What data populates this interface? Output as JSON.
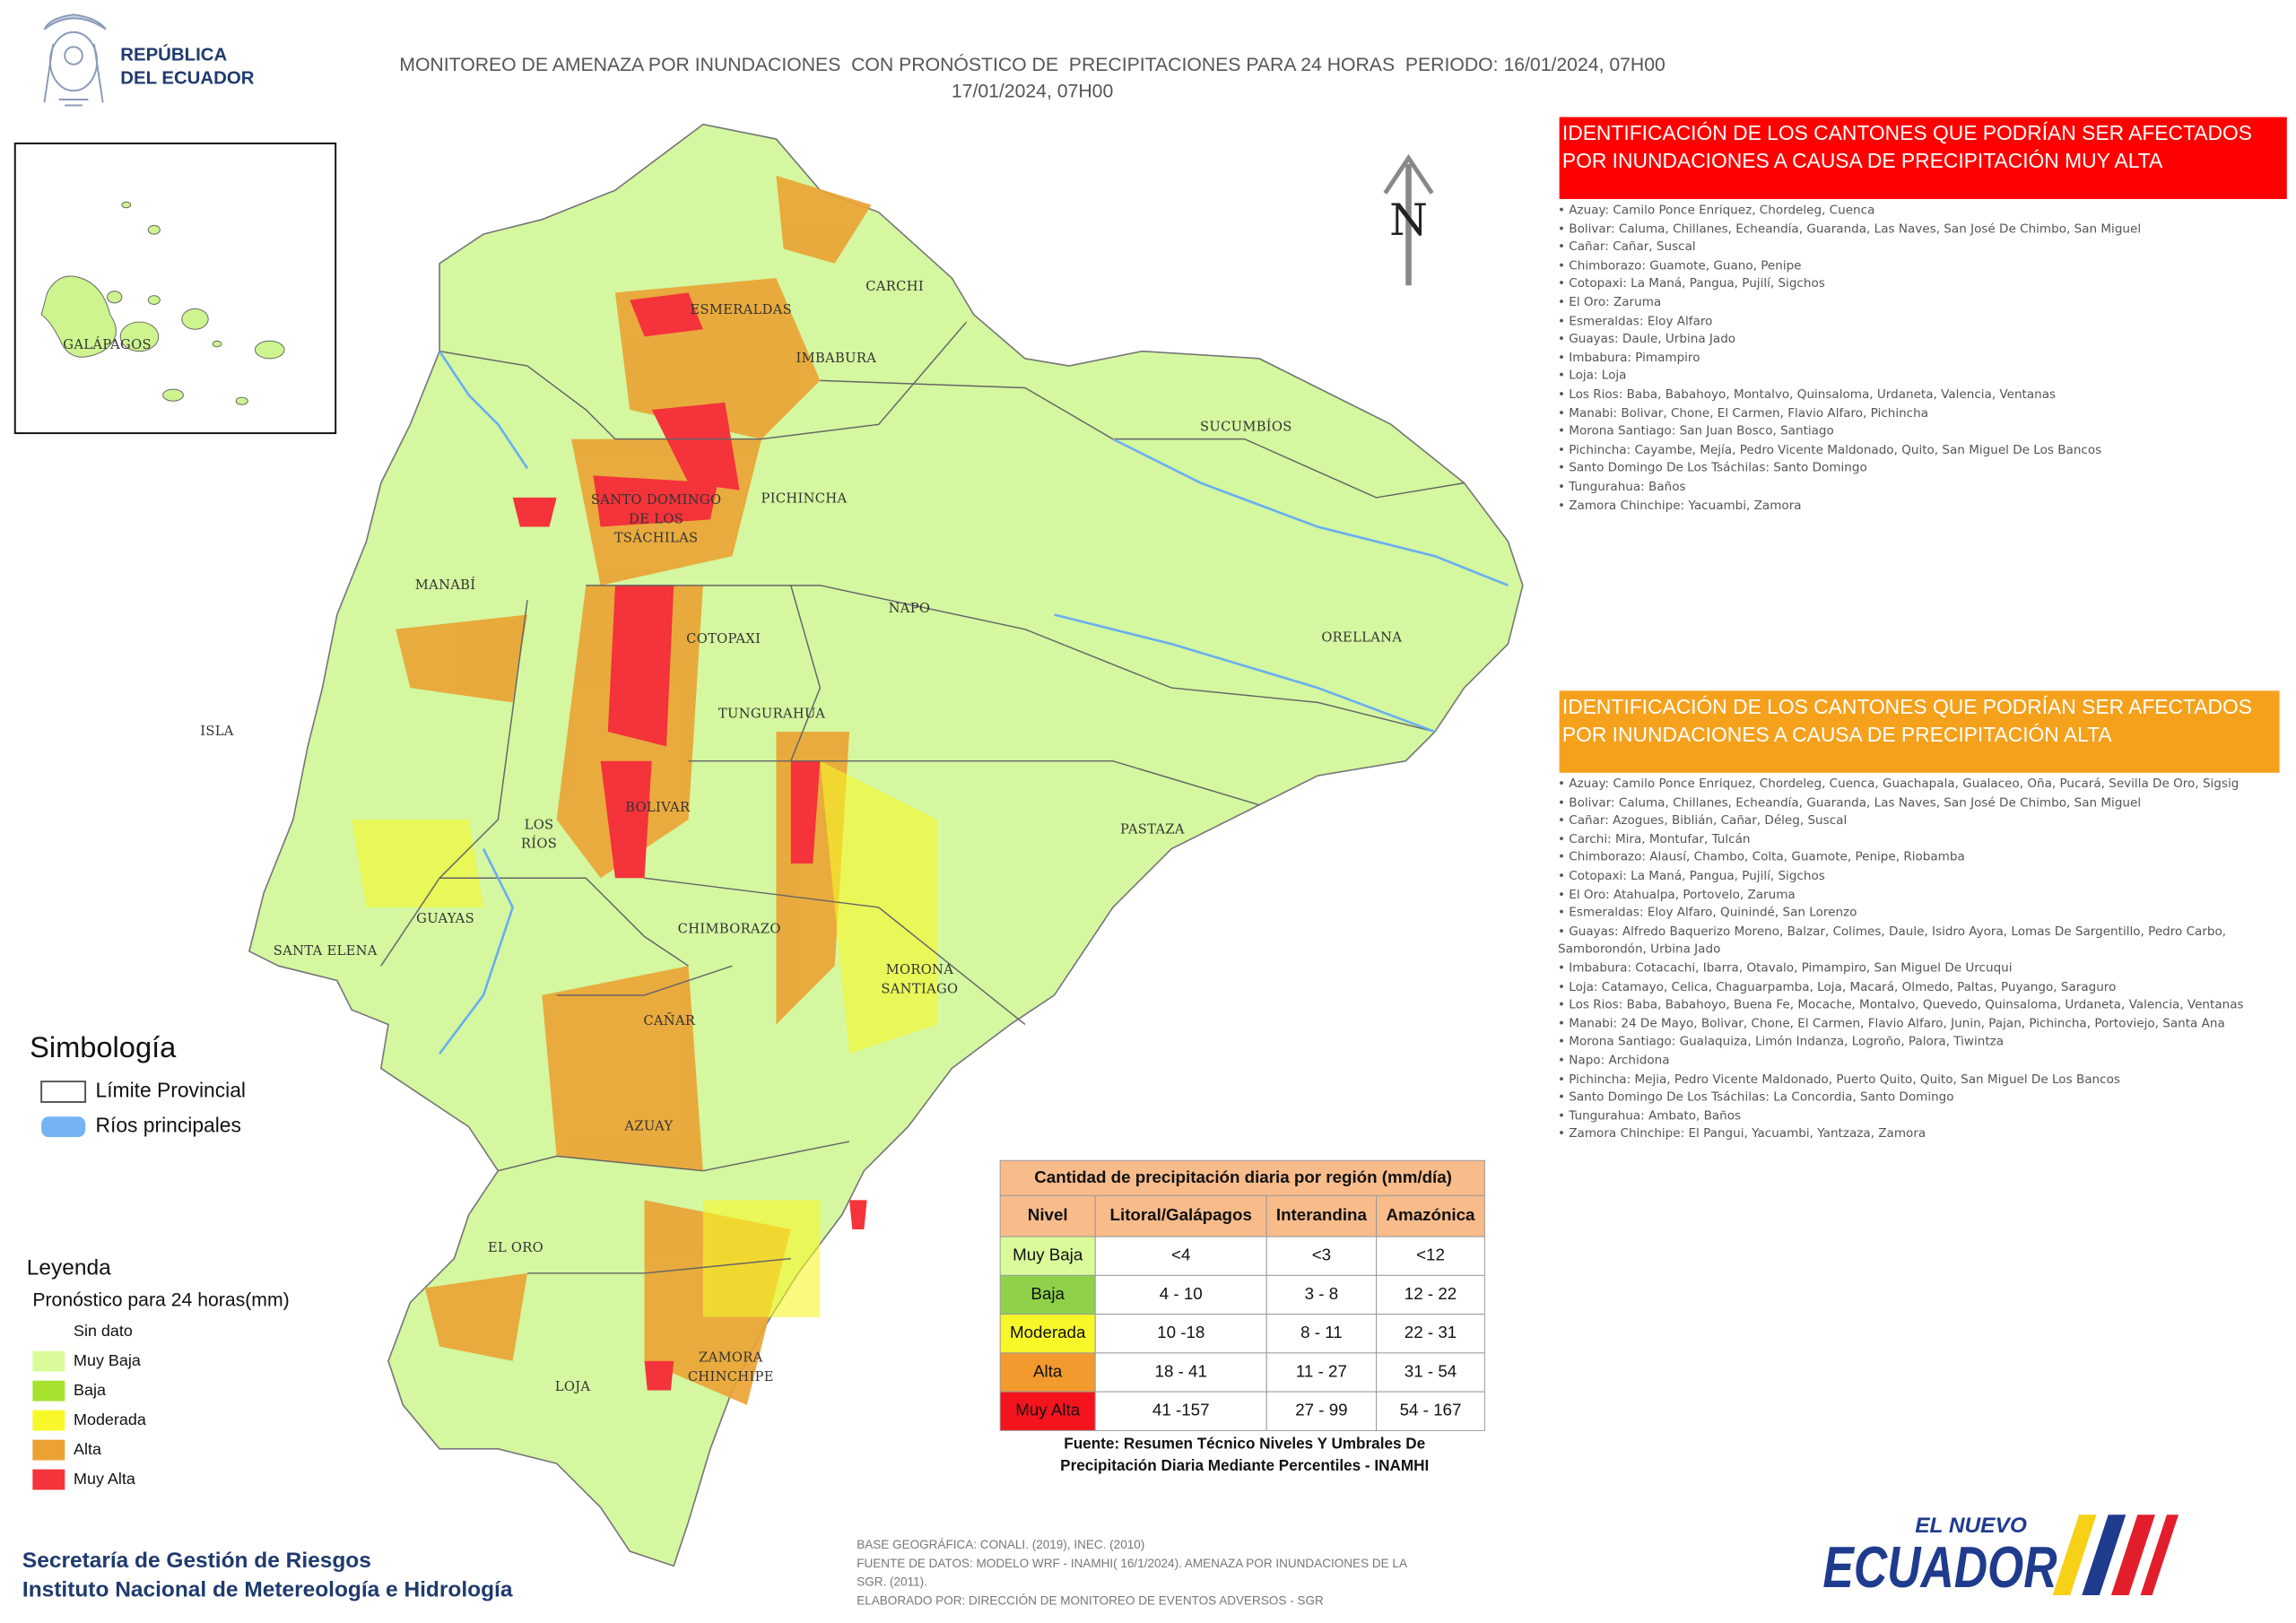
{
  "header": {
    "institution": [
      "REPÚBLICA",
      "DEL ECUADOR"
    ],
    "title": [
      "MONITOREO DE AMENAZA POR INUNDACIONES  CON PRONÓSTICO DE  PRECIPITACIONES PARA 24 HORAS  PERIODO: 16/01/2024, 07H00",
      "17/01/2024, 07H00"
    ]
  },
  "map": {
    "north": "N",
    "inset_label": "GALÁPAGOS",
    "provinces": [
      [
        "ESMERALDAS"
      ],
      [
        "CARCHI"
      ],
      [
        "IMBABURA"
      ],
      [
        "SUCUMBÍOS"
      ],
      [
        "PICHINCHA"
      ],
      [
        "SANTO DOMINGO",
        "DE LOS",
        "TSÁCHILAS"
      ],
      [
        "MANABÍ"
      ],
      [
        "NAPO"
      ],
      [
        "ORELLANA"
      ],
      [
        "COTOPAXI"
      ],
      [
        "TUNGURAHUA"
      ],
      [
        "ISLA"
      ],
      [
        "BOLIVAR"
      ],
      [
        "LOS",
        "RÍOS"
      ],
      [
        "PASTAZA"
      ],
      [
        "GUAYAS"
      ],
      [
        "CHIMBORAZO"
      ],
      [
        "SANTA ELENA"
      ],
      [
        "MORONA",
        "SANTIAGO"
      ],
      [
        "CAÑAR"
      ],
      [
        "AZUAY"
      ],
      [
        "EL ORO"
      ],
      [
        "ZAMORA",
        "CHINCHIPE"
      ],
      [
        "LOJA"
      ]
    ]
  },
  "symbology": {
    "title": "Simbología",
    "items": [
      "Límite Provincial",
      "Ríos principales"
    ]
  },
  "legend": {
    "title": "Leyenda",
    "subtitle": "Pronóstico para 24 horas(mm)",
    "items": [
      {
        "label": "Sin dato",
        "color": "#ffffff"
      },
      {
        "label": "Muy Baja",
        "color": "#d9fb9a"
      },
      {
        "label": "Baja",
        "color": "#a6e22e"
      },
      {
        "label": "Moderada",
        "color": "#f7f72a"
      },
      {
        "label": "Alta",
        "color": "#eba232"
      },
      {
        "label": "Muy Alta",
        "color": "#f4333a"
      }
    ]
  },
  "panels": [
    {
      "title": [
        "IDENTIFICACIÓN DE LOS CANTONES QUE PODRÍAN SER AFECTADOS",
        "POR INUNDACIONES  A CAUSA DE PRECIPITACIÓN MUY ALTA"
      ],
      "color": "#ff0000",
      "items": [
        "• Azuay: Camilo Ponce Enriquez, Chordeleg, Cuenca",
        "• Bolivar: Caluma, Chillanes, Echeandía, Guaranda, Las Naves, San José De Chimbo, San Miguel",
        "• Cañar: Cañar, Suscal",
        "• Chimborazo: Guamote, Guano, Penipe",
        "• Cotopaxi: La Maná, Pangua, Pujilí, Sigchos",
        "• El Oro: Zaruma",
        "• Esmeraldas: Eloy Alfaro",
        "• Guayas: Daule, Urbina Jado",
        "• Imbabura: Pimampiro",
        "• Loja: Loja",
        "• Los Rios: Baba, Babahoyo, Montalvo, Quinsaloma, Urdaneta, Valencia, Ventanas",
        "• Manabi: Bolivar, Chone, El Carmen, Flavio Alfaro, Pichincha",
        "• Morona Santiago: San Juan Bosco, Santiago",
        "• Pichincha: Cayambe, Mejía, Pedro Vicente Maldonado, Quito, San Miguel De Los Bancos",
        "• Santo Domingo De Los Tsáchilas: Santo Domingo",
        "• Tungurahua: Baños",
        "• Zamora Chinchipe: Yacuambi, Zamora"
      ]
    },
    {
      "title": [
        "IDENTIFICACIÓN DE LOS CANTONES QUE  PODRÍAN SER AFECTADOS",
        "POR INUNDACIONES  A CAUSA DE PRECIPITACIÓN  ALTA"
      ],
      "color": "#f5a11c",
      "items": [
        "• Azuay: Camilo Ponce Enriquez, Chordeleg, Cuenca, Guachapala, Gualaceo, Oña, Pucará, Sevilla De Oro, Sigsig",
        "• Bolivar: Caluma, Chillanes, Echeandía, Guaranda, Las Naves, San José De Chimbo, San Miguel",
        "• Cañar: Azogues, Biblián, Cañar, Déleg, Suscal",
        "• Carchi: Mira, Montufar, Tulcán",
        "• Chimborazo: Alausí, Chambo, Colta, Guamote, Penipe, Riobamba",
        "• Cotopaxi: La Maná, Pangua, Pujilí, Sigchos",
        "• El Oro: Atahualpa, Portovelo, Zaruma",
        "• Esmeraldas: Eloy Alfaro, Quinindé, San Lorenzo",
        "• Guayas: Alfredo Baquerizo Moreno, Balzar, Colimes, Daule, Isidro Ayora, Lomas De Sargentillo, Pedro Carbo, Samborondón, Urbina Jado",
        "• Imbabura: Cotacachi, Ibarra, Otavalo, Pimampiro, San Miguel De Urcuqui",
        "• Loja: Catamayo, Celica, Chaguarpamba, Loja, Macará, Olmedo, Paltas, Puyango, Saraguro",
        "• Los Rios: Baba, Babahoyo, Buena Fe, Mocache, Montalvo, Quevedo, Quinsaloma, Urdaneta, Valencia, Ventanas",
        "• Manabi: 24 De Mayo, Bolivar, Chone, El Carmen, Flavio Alfaro, Junin, Pajan, Pichincha, Portoviejo, Santa Ana",
        "• Morona Santiago: Gualaquiza, Limón Indanza, Logroño, Palora, Tiwintza",
        "• Napo: Archidona",
        "• Pichincha: Mejia, Pedro Vicente Maldonado, Puerto Quito, Quito, San Miguel De Los Bancos",
        "• Santo Domingo De Los Tsáchilas: La Concordia, Santo Domingo",
        "• Tungurahua: Ambato, Baños",
        "• Zamora Chinchipe: El Pangui, Yacuambi, Yantzaza, Zamora"
      ]
    }
  ],
  "table": {
    "title": "Cantidad de precipitación diaria por región (mm/día)",
    "header": [
      "Nivel",
      "Litoral/Galápagos",
      "Interandina",
      "Amazónica"
    ],
    "header_color": "#f8bb8a",
    "rows": [
      [
        "Muy Baja",
        "<4",
        "<3",
        "<12"
      ],
      [
        "Baja",
        "4 - 10",
        "3 - 8",
        "12 - 22"
      ],
      [
        "Moderada",
        "10 -18",
        "8 - 11",
        "22 - 31"
      ],
      [
        "Alta",
        "18 - 41",
        "11 - 27",
        "31 - 54"
      ],
      [
        "Muy Alta",
        "41 -157",
        "27 - 99",
        "54 - 167"
      ]
    ],
    "row_colors": [
      "#d9fb9a",
      "#8fd24a",
      "#f7f72a",
      "#f29a2e",
      "#f4141e"
    ],
    "source": [
      "Fuente: Resumen Técnico Niveles Y Umbrales De",
      "Precipitación Diaria Mediante Percentiles - INAMHI"
    ]
  },
  "footer": {
    "organizations": [
      "Secretaría de Gestión de Riesgos",
      "Instituto Nacional de Metereología e Hidrología"
    ],
    "notes": [
      "BASE GEOGRÁFICA: CONALI. (2019), INEC. (2010)",
      "FUENTE DE DATOS: MODELO WRF - INAMHI( 16/1/2024).  AMENAZA POR INUNDACIONES DE LA",
      "SGR. (2011).",
      "ELABORADO POR: DIRECCIÓN DE MONITOREO DE EVENTOS ADVERSOS - SGR"
    ],
    "logo": [
      "EL NUEVO",
      "ECUADOR"
    ]
  }
}
